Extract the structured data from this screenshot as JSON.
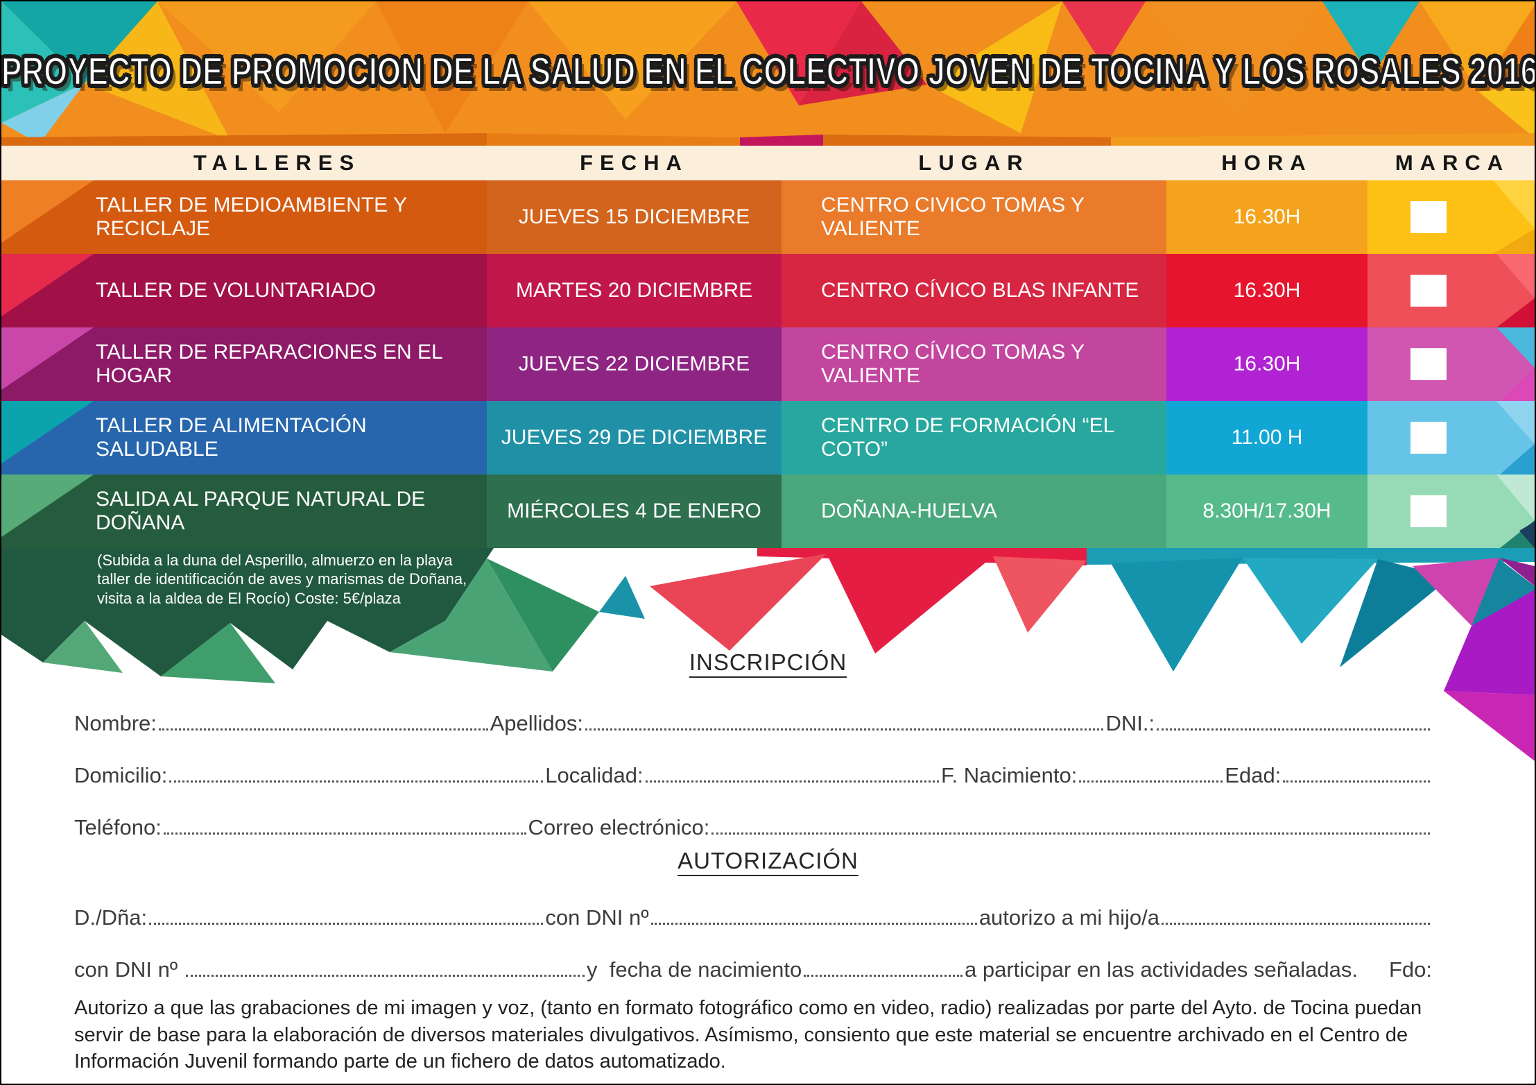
{
  "title": "PROYECTO DE PROMOCION DE LA SALUD EN EL COLECTIVO JOVEN DE TOCINA Y LOS ROSALES 2016",
  "header_band_color": "#fbeedb",
  "table": {
    "headers": [
      "TALLERES",
      "FECHA",
      "LUGAR",
      "HORA",
      "MARCA"
    ],
    "rows": [
      {
        "taller": "TALLER DE MEDIOAMBIENTE Y RECICLAJE",
        "fecha": "JUEVES 15 DICIEMBRE",
        "lugar": "CENTRO CIVICO TOMAS Y VALIENTE",
        "hora": "16.30H",
        "marca_checked": false,
        "colors": {
          "taller": "#d45a10",
          "fecha": "#d3641d",
          "lugar": "#e97b2b",
          "hora": "#f5a31c",
          "marca": "#fcc114",
          "accent": "#ef7f24"
        }
      },
      {
        "taller": "TALLER  DE VOLUNTARIADO",
        "fecha": "MARTES 20 DICIEMBRE",
        "lugar": "CENTRO CÍVICO BLAS INFANTE",
        "hora": "16.30H",
        "marca_checked": false,
        "colors": {
          "taller": "#a21048",
          "fecha": "#c2174a",
          "lugar": "#d62641",
          "hora": "#e7142e",
          "marca": "#ef4f58",
          "accent": "#e52a4b"
        }
      },
      {
        "taller": "TALLER DE REPARACIONES EN EL HOGAR",
        "fecha": "JUEVES 22 DICIEMBRE",
        "lugar": "CENTRO CÍVICO TOMAS Y VALIENTE",
        "hora": "16.30H",
        "marca_checked": false,
        "colors": {
          "taller": "#8c1a67",
          "fecha": "#8e2583",
          "lugar": "#c2469e",
          "hora": "#b022d2",
          "marca": "#d056b2",
          "accent": "#c847a8"
        }
      },
      {
        "taller": "TALLER DE ALIMENTACIÓN SALUDABLE",
        "fecha": "JUEVES 29 DE DICIEMBRE",
        "lugar": "CENTRO DE FORMACIÓN “EL COTO”",
        "hora": "11.00 H",
        "marca_checked": false,
        "colors": {
          "taller": "#2766ac",
          "fecha": "#2090a6",
          "lugar": "#28a79e",
          "hora": "#12a6d4",
          "marca": "#65c4e8",
          "accent": "#0ba4ad"
        }
      },
      {
        "taller": "SALIDA AL PARQUE NATURAL DE DOÑANA",
        "fecha": "MIÉRCOLES 4 DE ENERO",
        "lugar": "DOÑANA-HUELVA",
        "hora": "8.30H/17.30H",
        "marca_checked": false,
        "note": "(Subida a la duna del Asperillo, almuerzo en la playa\ntaller de identificación de aves y marismas de Doñana,\nvisita a la aldea de El Rocío) Coste: 5€/plaza",
        "colors": {
          "taller": "#265c3e",
          "fecha": "#2e6f4e",
          "lugar": "#4aa67b",
          "hora": "#56ba8b",
          "marca": "#97dbb6",
          "accent": "#57ab79"
        }
      }
    ]
  },
  "inscripcion": {
    "heading": "INSCRIPCIÓN",
    "lines": [
      {
        "segments": [
          {
            "label": "Nombre:",
            "dots": 470
          },
          {
            "label": "Apellidos:",
            "dots": 740
          },
          {
            "label": "DNI.:",
            "dots": 390
          }
        ]
      },
      {
        "segments": [
          {
            "label": "Domicilio:",
            "dots": 560
          },
          {
            "label": "Localidad:",
            "dots": 440
          },
          {
            "label": "F. Nacimiento:",
            "dots": 215
          },
          {
            "label": "Edad:",
            "dots": 220
          }
        ]
      },
      {
        "segments": [
          {
            "label": "Teléfono:",
            "dots": 535
          },
          {
            "label": "Correo electrónico:",
            "dots": 1060
          }
        ]
      }
    ]
  },
  "autorizacion": {
    "heading": "AUTORIZACIÓN",
    "lines": [
      {
        "segments": [
          {
            "label": "D./Dña:",
            "dots": 580
          },
          {
            "label": "con DNI nº",
            "dots": 480
          },
          {
            "label": "autorizo a mi hijo/a",
            "dots": 395
          }
        ]
      },
      {
        "segments": [
          {
            "label": "con DNI nº ",
            "dots": 440
          },
          {
            "label": "y  fecha de nacimiento",
            "dots": 175
          },
          {
            "label": "a participar en las actividades señaladas.",
            "dots": 0
          },
          {
            "label": "Fdo:",
            "dots": 0,
            "gap": 45
          }
        ]
      }
    ],
    "disclaimer": "Autorizo a que las grabaciones de mi imagen y voz, (tanto en formato fotográfico como en video, radio) realizadas por parte del Ayto. de Tocina puedan servir de base para la elaboración de diversos materiales divulgativos. Asímismo, consiento que este material se encuentre archivado en el Centro de Información Juvenil formando parte de un fichero de datos automatizado."
  }
}
